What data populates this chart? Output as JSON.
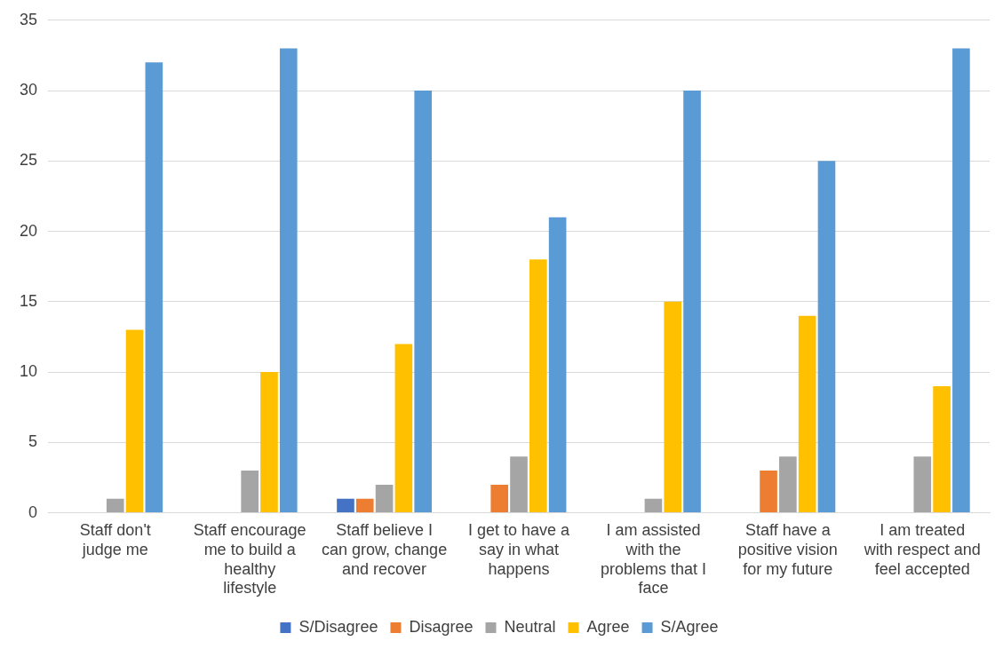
{
  "chart_data": {
    "type": "bar",
    "categories": [
      "Staff don't judge me",
      "Staff encourage me to build a healthy lifestyle",
      "Staff believe I can grow, change and recover",
      "I get to have a say in what happens",
      "I am assisted with the problems that I face",
      "Staff have a positive vision for my future",
      "I am treated with respect and feel accepted"
    ],
    "series": [
      {
        "name": "S/Disagree",
        "color": "#4472c4",
        "values": [
          0,
          0,
          1,
          0,
          0,
          0,
          0
        ]
      },
      {
        "name": "Disagree",
        "color": "#ed7d31",
        "values": [
          0,
          0,
          1,
          2,
          0,
          3,
          0
        ]
      },
      {
        "name": "Neutral",
        "color": "#a5a5a5",
        "values": [
          1,
          3,
          2,
          4,
          1,
          4,
          4
        ]
      },
      {
        "name": "Agree",
        "color": "#ffc000",
        "values": [
          13,
          10,
          12,
          18,
          15,
          14,
          9
        ]
      },
      {
        "name": "S/Agree",
        "color": "#5b9bd5",
        "values": [
          32,
          33,
          30,
          21,
          30,
          25,
          33
        ]
      }
    ],
    "ylim": [
      0,
      35
    ],
    "yticks": [
      0,
      5,
      10,
      15,
      20,
      25,
      30,
      35
    ],
    "grid": "y",
    "legend": "bottom"
  }
}
